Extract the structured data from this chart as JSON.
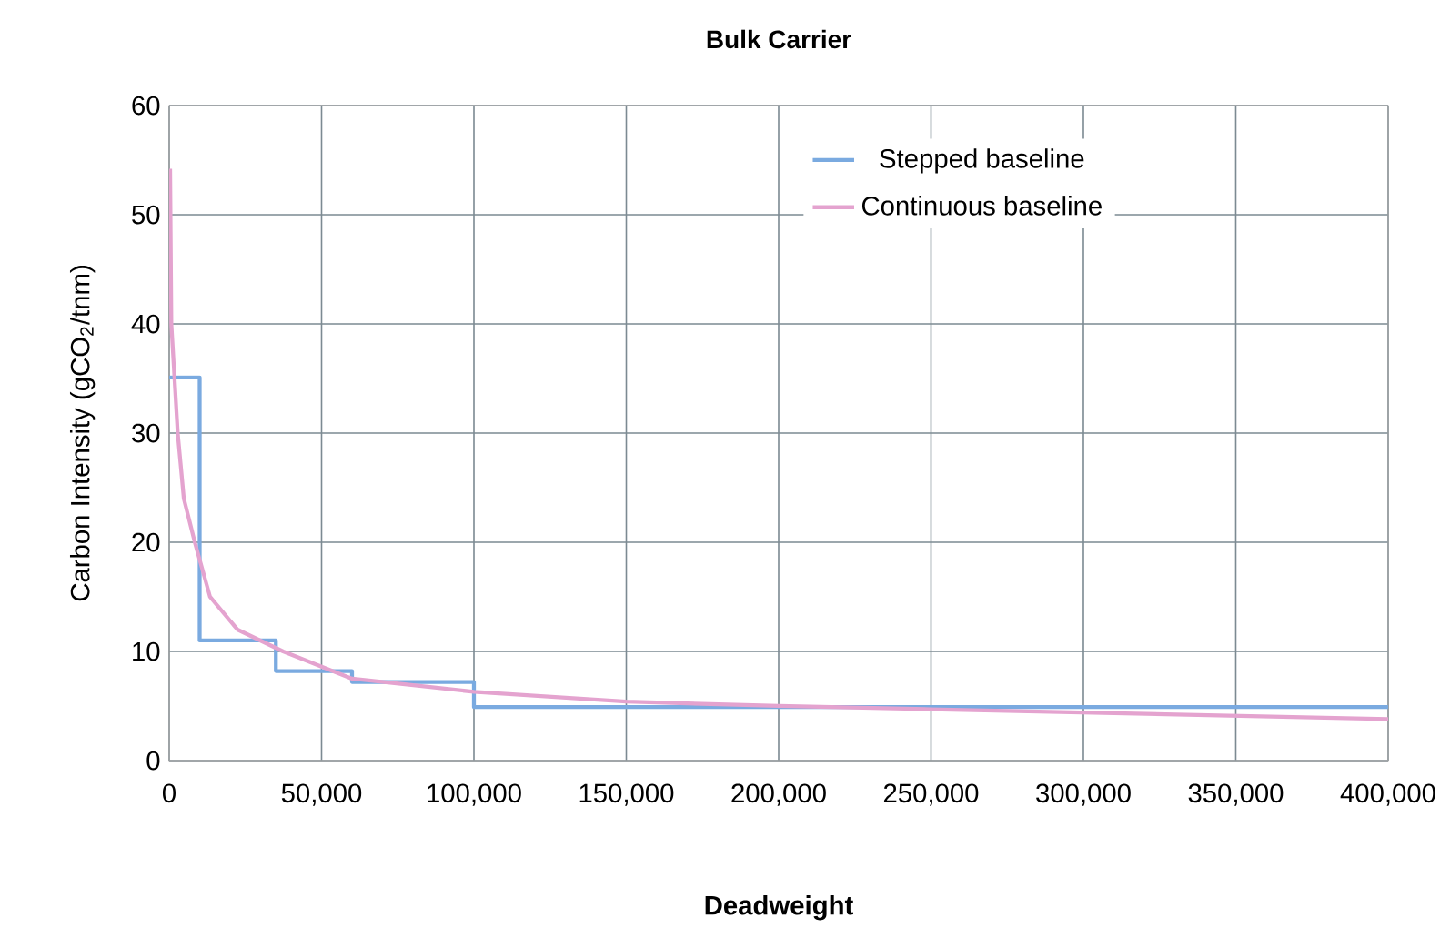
{
  "chart_data": {
    "type": "line",
    "title": "Bulk Carrier",
    "xlabel": "Deadweight",
    "ylabel": "Carbon Intensity (gCO$_{2}$/tnm)",
    "xlim": [
      0,
      400000
    ],
    "ylim": [
      0,
      60
    ],
    "xticks": [
      0,
      {
        "value": 50000,
        "label": "50,000"
      },
      {
        "value": 100000,
        "label": "100,000"
      },
      {
        "value": 150000,
        "label": "150,000"
      },
      {
        "value": 200000,
        "label": "200,000"
      },
      {
        "value": 250000,
        "label": "250,000"
      },
      {
        "value": 300000,
        "label": "300,000"
      },
      {
        "value": 350000,
        "label": "350,000"
      },
      {
        "value": 400000,
        "label": "400,000"
      }
    ],
    "yticks": [
      0,
      10,
      20,
      30,
      40,
      50,
      60
    ],
    "grid": true,
    "legend": "top right",
    "marker": "none",
    "series": [
      {
        "name": "Stepped baseline",
        "type": "step",
        "color": "#7aaae0",
        "x": [
          0,
          10000,
          35000,
          60000,
          100000,
          400000
        ],
        "values": [
          35.1,
          11,
          8.2,
          7.2,
          4.9,
          4.9
        ]
      },
      {
        "name": "Continuous baseline",
        "type": "line",
        "color": "#e4a3cf",
        "x": [
          300,
          700,
          2800,
          4800,
          8400,
          13400,
          22400,
          37400,
          60000,
          100000,
          150000,
          200000,
          250000,
          300000,
          350000,
          400000
        ],
        "values": [
          54.2,
          40,
          30,
          24,
          20,
          15,
          12,
          10,
          7.5,
          6.3,
          5.4,
          5.0,
          4.7,
          4.4,
          4.1,
          3.8
        ]
      }
    ]
  }
}
